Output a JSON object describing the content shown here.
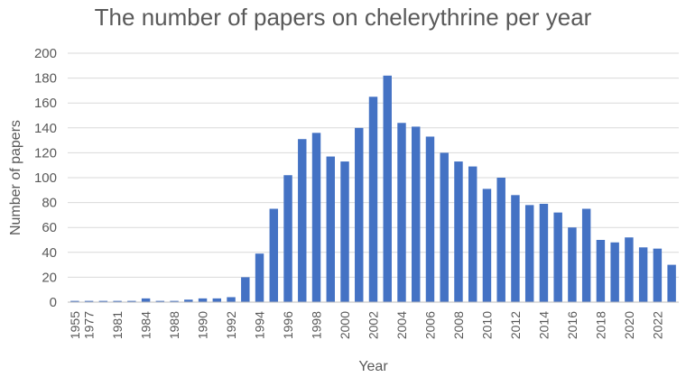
{
  "chart_data": {
    "type": "bar",
    "title": "The number of papers on chelerythrine per year",
    "xlabel": "Year",
    "ylabel": "Number of papers",
    "ylim": [
      0,
      200
    ],
    "yticks": [
      0,
      20,
      40,
      60,
      80,
      100,
      120,
      140,
      160,
      180,
      200
    ],
    "grid": true,
    "bar_color": "#4472C4",
    "categories": [
      "1955",
      "1977",
      "1979",
      "1981",
      "1982",
      "1984",
      "1985",
      "1988",
      "1989",
      "1990",
      "1991",
      "1992",
      "1993",
      "1994",
      "1995",
      "1996",
      "1997",
      "1998",
      "1999",
      "2000",
      "2001",
      "2002",
      "2003",
      "2004",
      "2005",
      "2006",
      "2007",
      "2008",
      "2009",
      "2010",
      "2011",
      "2012",
      "2013",
      "2014",
      "2015",
      "2016",
      "2017",
      "2018",
      "2019",
      "2020",
      "2021",
      "2022",
      "2023"
    ],
    "labeled_categories": [
      "1955",
      "1977",
      "1981",
      "1984",
      "1988",
      "1990",
      "1992",
      "1994",
      "1996",
      "1998",
      "2000",
      "2002",
      "2004",
      "2006",
      "2008",
      "2010",
      "2012",
      "2014",
      "2016",
      "2018",
      "2020",
      "2022"
    ],
    "values": [
      1,
      1,
      1,
      1,
      1,
      3,
      1,
      1,
      2,
      3,
      3,
      4,
      20,
      39,
      75,
      102,
      131,
      136,
      117,
      113,
      140,
      165,
      182,
      144,
      141,
      133,
      120,
      113,
      109,
      91,
      100,
      86,
      78,
      79,
      72,
      60,
      75,
      50,
      48,
      52,
      44,
      43,
      30
    ]
  }
}
